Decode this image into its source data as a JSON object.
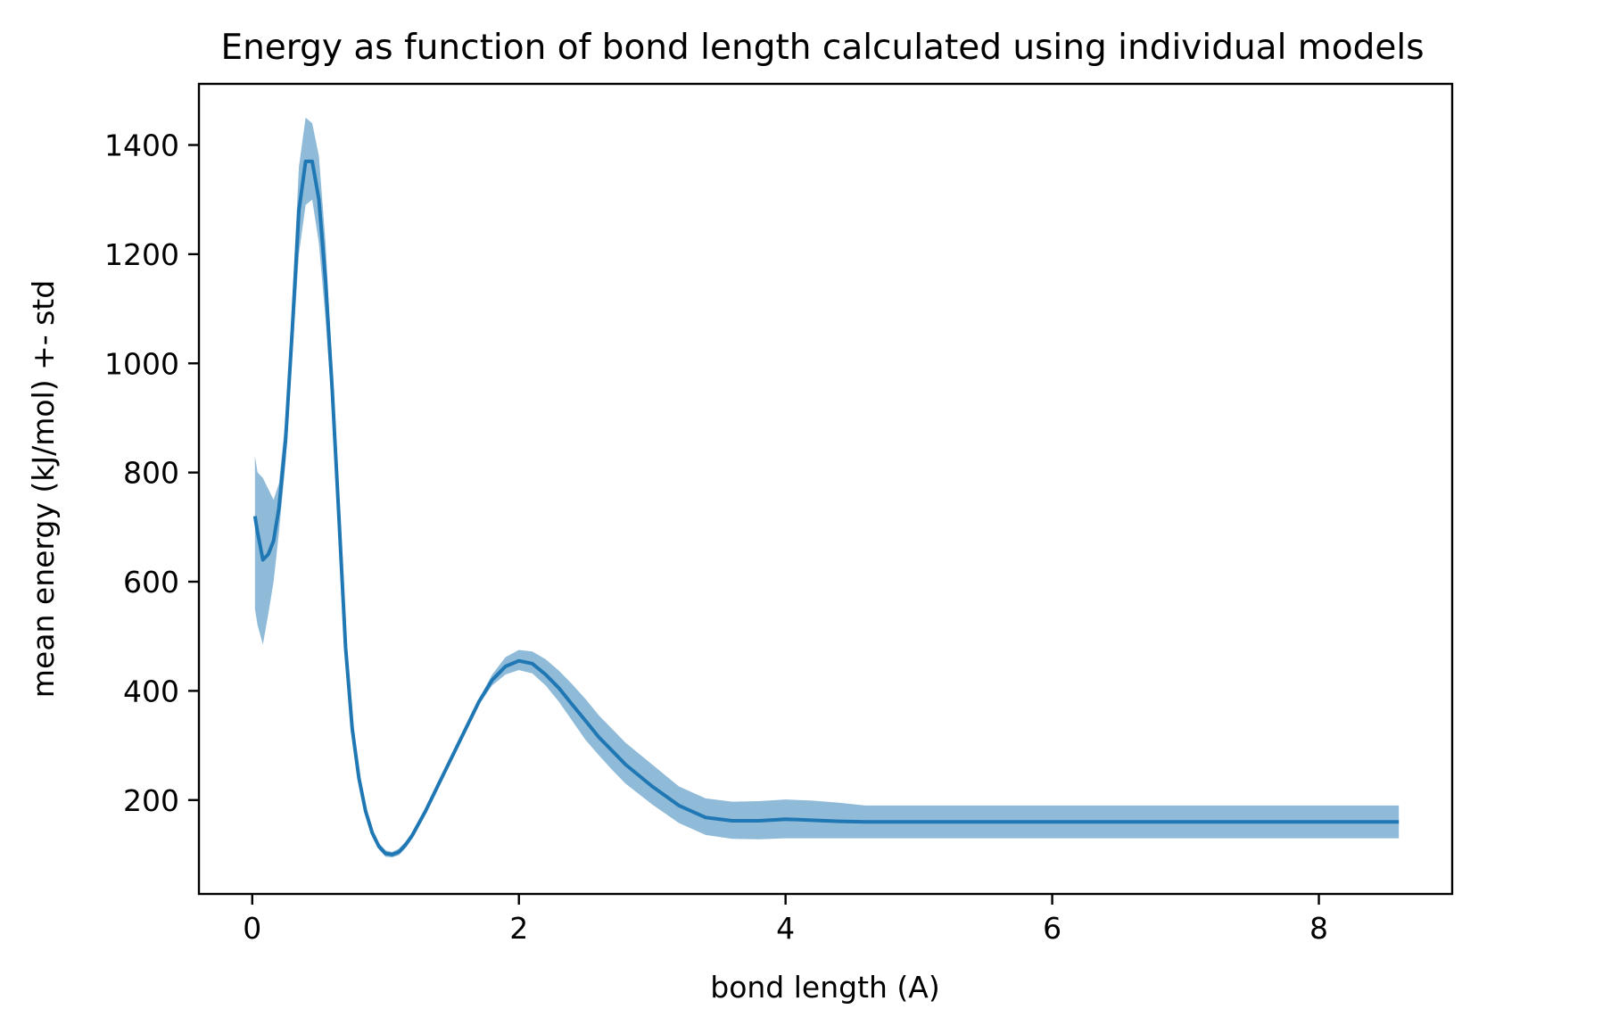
{
  "chart_data": {
    "type": "line",
    "title": "Energy as function of bond length calculated using individual models",
    "xlabel": "bond length (A)",
    "ylabel": "mean energy (kJ/mol) +- std",
    "xlim": [
      -0.4,
      9.0
    ],
    "ylim": [
      28,
      1512
    ],
    "xticks": [
      0,
      2,
      4,
      6,
      8
    ],
    "yticks": [
      200,
      400,
      600,
      800,
      1000,
      1200,
      1400
    ],
    "grid": false,
    "legend": "none",
    "colors": {
      "line": "#1f77b4",
      "band": "#1f77b4",
      "band_opacity": 0.5
    },
    "series": [
      {
        "x": [
          0.02,
          0.04,
          0.08,
          0.12,
          0.16,
          0.2,
          0.25,
          0.3,
          0.35,
          0.4,
          0.45,
          0.5,
          0.55,
          0.6,
          0.65,
          0.7,
          0.75,
          0.8,
          0.85,
          0.9,
          0.95,
          1.0,
          1.05,
          1.1,
          1.15,
          1.2,
          1.3,
          1.4,
          1.5,
          1.6,
          1.7,
          1.8,
          1.9,
          2.0,
          2.1,
          2.2,
          2.3,
          2.4,
          2.5,
          2.6,
          2.7,
          2.8,
          3.0,
          3.2,
          3.4,
          3.6,
          3.8,
          4.0,
          4.2,
          4.4,
          4.6,
          5.0,
          6.0,
          7.0,
          8.0,
          8.6
        ],
        "y": [
          720,
          690,
          640,
          650,
          675,
          735,
          860,
          1060,
          1280,
          1370,
          1370,
          1300,
          1150,
          950,
          720,
          480,
          330,
          240,
          180,
          140,
          115,
          102,
          100,
          105,
          118,
          135,
          180,
          230,
          280,
          330,
          380,
          420,
          445,
          455,
          450,
          430,
          405,
          375,
          345,
          315,
          290,
          265,
          225,
          190,
          168,
          162,
          162,
          165,
          163,
          161,
          160,
          160,
          160,
          160,
          160,
          160
        ],
        "upper": [
          830,
          800,
          790,
          770,
          750,
          780,
          900,
          1110,
          1360,
          1450,
          1440,
          1380,
          1220,
          990,
          760,
          500,
          345,
          250,
          190,
          148,
          121,
          108,
          105,
          111,
          124,
          141,
          185,
          235,
          285,
          335,
          385,
          430,
          462,
          475,
          472,
          458,
          437,
          412,
          385,
          355,
          330,
          305,
          265,
          225,
          203,
          197,
          198,
          201,
          199,
          195,
          190,
          190,
          190,
          190,
          190,
          190
        ],
        "lower": [
          550,
          520,
          485,
          540,
          600,
          690,
          820,
          1010,
          1200,
          1290,
          1300,
          1220,
          1080,
          910,
          680,
          460,
          315,
          230,
          170,
          132,
          109,
          96,
          95,
          99,
          112,
          129,
          175,
          225,
          275,
          325,
          375,
          410,
          430,
          438,
          432,
          410,
          380,
          345,
          310,
          282,
          255,
          230,
          192,
          158,
          136,
          129,
          128,
          130,
          130,
          130,
          130,
          130,
          130,
          130,
          130,
          130
        ]
      }
    ]
  }
}
